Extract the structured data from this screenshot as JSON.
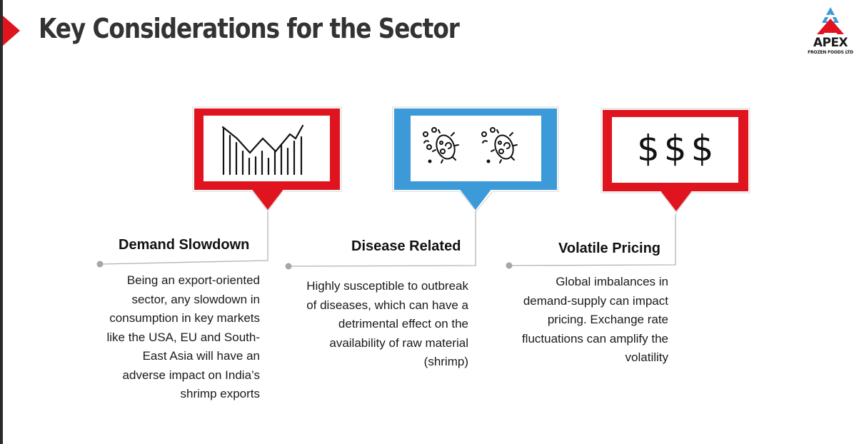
{
  "page": {
    "title": "Key Considerations for the Sector"
  },
  "logo": {
    "name": "APEX",
    "subtitle": "FROZEN FOODS LTD"
  },
  "colors": {
    "accent_red": "#e0141e",
    "accent_blue": "#3d9ad8",
    "title_gray": "#333333"
  },
  "cards": [
    {
      "icon": "declining-bar-chart-icon",
      "frame_color": "#e0141e",
      "heading": "Demand Slowdown",
      "description": "Being an export-oriented sector, any slowdown in consumption in key markets like the USA, EU and South-East Asia will have an adverse impact on India’s shrimp exports"
    },
    {
      "icon": "virus-icon",
      "frame_color": "#3d9ad8",
      "heading": "Disease Related",
      "description": "Highly susceptible to outbreak of diseases, which can have a detrimental effect on the availability of raw material (shrimp)"
    },
    {
      "icon": "dollar-signs-icon",
      "frame_color": "#e0141e",
      "heading": "Volatile Pricing",
      "description": "Global imbalances in demand-supply can impact pricing. Exchange rate fluctuations can amplify the volatility",
      "symbols": "$$$"
    }
  ]
}
